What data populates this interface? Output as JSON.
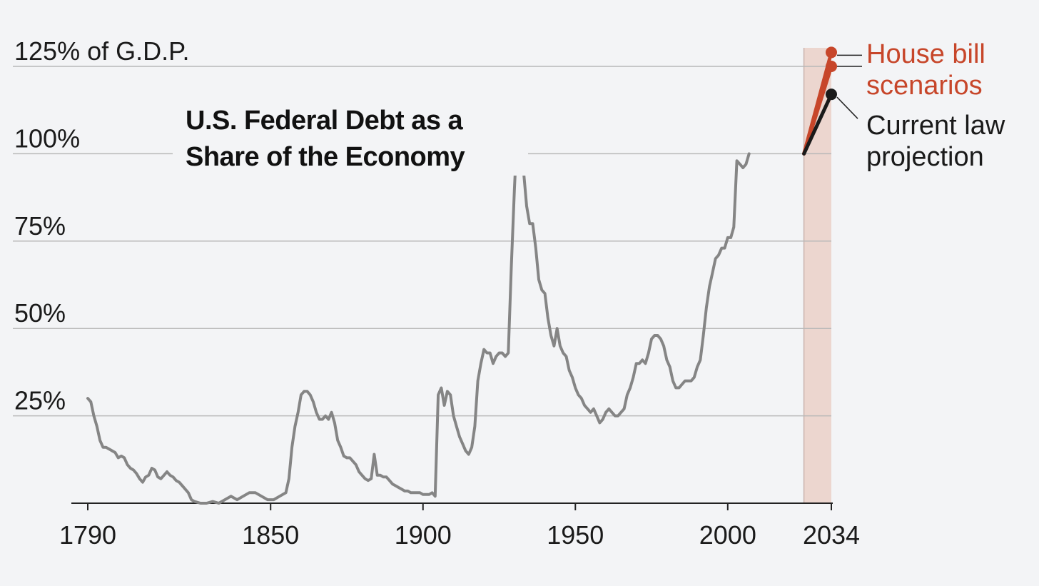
{
  "chart_data": {
    "type": "line",
    "title": "U.S. Federal Debt as a Share of the Economy",
    "title_lines": [
      "U.S. Federal Debt as a",
      "Share of the Economy"
    ],
    "y_tick_labels": [
      "125% of G.D.P.",
      "100%",
      "75%",
      "50%",
      "25%"
    ],
    "y_ticks": [
      125,
      100,
      75,
      50,
      25
    ],
    "x_ticks": [
      1790,
      1850,
      1900,
      1950,
      2000,
      2034
    ],
    "x_tick_labels": [
      "1790",
      "1850",
      "1900",
      "1950",
      "2000",
      "2034"
    ],
    "xlim": [
      1790,
      2034
    ],
    "ylim": [
      0,
      125
    ],
    "grid": true,
    "projection_window": [
      2025,
      2034
    ],
    "colors": {
      "history": "#858585",
      "house": "#c7462a",
      "current": "#1a1a1a",
      "shade": "#ecd6cf",
      "grid": "#b8b8b8"
    },
    "series": [
      {
        "key": "history",
        "points": [
          [
            1790,
            30
          ],
          [
            1791,
            29
          ],
          [
            1792,
            25
          ],
          [
            1793,
            22
          ],
          [
            1794,
            18
          ],
          [
            1795,
            16
          ],
          [
            1796,
            16
          ],
          [
            1797,
            15.5
          ],
          [
            1798,
            15
          ],
          [
            1799,
            14.5
          ],
          [
            1800,
            13
          ],
          [
            1801,
            13.5
          ],
          [
            1802,
            13
          ],
          [
            1803,
            11
          ],
          [
            1804,
            10
          ],
          [
            1805,
            9.5
          ],
          [
            1806,
            8.5
          ],
          [
            1807,
            7
          ],
          [
            1808,
            6
          ],
          [
            1809,
            7.5
          ],
          [
            1810,
            8
          ],
          [
            1811,
            10
          ],
          [
            1812,
            9.5
          ],
          [
            1813,
            7.5
          ],
          [
            1814,
            7
          ],
          [
            1815,
            8
          ],
          [
            1816,
            9
          ],
          [
            1817,
            8
          ],
          [
            1818,
            7.5
          ],
          [
            1819,
            6.5
          ],
          [
            1820,
            6
          ],
          [
            1821,
            5
          ],
          [
            1822,
            4
          ],
          [
            1823,
            3
          ],
          [
            1824,
            1
          ],
          [
            1825,
            0.5
          ],
          [
            1827,
            0
          ],
          [
            1829,
            0
          ],
          [
            1831,
            0.5
          ],
          [
            1833,
            0
          ],
          [
            1835,
            1
          ],
          [
            1837,
            2
          ],
          [
            1839,
            1
          ],
          [
            1841,
            2
          ],
          [
            1843,
            3
          ],
          [
            1845,
            3
          ],
          [
            1847,
            2
          ],
          [
            1849,
            1
          ],
          [
            1851,
            1
          ],
          [
            1853,
            2
          ],
          [
            1855,
            3
          ],
          [
            1856,
            7
          ],
          [
            1857,
            16
          ],
          [
            1858,
            22
          ],
          [
            1859,
            26
          ],
          [
            1860,
            31
          ],
          [
            1861,
            32
          ],
          [
            1862,
            32
          ],
          [
            1863,
            31
          ],
          [
            1864,
            29
          ],
          [
            1865,
            26
          ],
          [
            1866,
            24
          ],
          [
            1867,
            24
          ],
          [
            1868,
            25
          ],
          [
            1869,
            24
          ],
          [
            1870,
            26
          ],
          [
            1871,
            23
          ],
          [
            1872,
            18
          ],
          [
            1873,
            16
          ],
          [
            1874,
            13.5
          ],
          [
            1875,
            13
          ],
          [
            1876,
            13
          ],
          [
            1877,
            12
          ],
          [
            1878,
            11
          ],
          [
            1879,
            9
          ],
          [
            1880,
            8
          ],
          [
            1881,
            7
          ],
          [
            1882,
            6.5
          ],
          [
            1883,
            7
          ],
          [
            1884,
            14
          ],
          [
            1885,
            8
          ],
          [
            1886,
            8
          ],
          [
            1887,
            7.5
          ],
          [
            1888,
            7.5
          ],
          [
            1889,
            6.5
          ],
          [
            1890,
            5.5
          ],
          [
            1891,
            5
          ],
          [
            1892,
            4.5
          ],
          [
            1893,
            4
          ],
          [
            1894,
            3.5
          ],
          [
            1895,
            3.5
          ],
          [
            1896,
            3
          ],
          [
            1897,
            3
          ],
          [
            1898,
            3
          ],
          [
            1899,
            3
          ],
          [
            1900,
            2.5
          ],
          [
            1901,
            2.5
          ],
          [
            1902,
            2.5
          ],
          [
            1903,
            3
          ],
          [
            1904,
            2
          ],
          [
            1905,
            31
          ],
          [
            1906,
            33
          ],
          [
            1907,
            28
          ],
          [
            1908,
            32
          ],
          [
            1909,
            31
          ],
          [
            1910,
            25
          ],
          [
            1911,
            22
          ],
          [
            1912,
            19
          ],
          [
            1913,
            17
          ],
          [
            1914,
            15
          ],
          [
            1915,
            14
          ],
          [
            1916,
            16
          ],
          [
            1917,
            22
          ],
          [
            1918,
            35
          ],
          [
            1919,
            40
          ],
          [
            1920,
            44
          ],
          [
            1921,
            43
          ],
          [
            1922,
            43
          ],
          [
            1923,
            40
          ],
          [
            1924,
            42
          ],
          [
            1925,
            43
          ],
          [
            1926,
            43
          ],
          [
            1927,
            42
          ],
          [
            1928,
            43
          ],
          [
            1929,
            68
          ],
          [
            1930,
            90
          ],
          [
            1931,
            108
          ],
          [
            1932,
            106
          ],
          [
            1933,
            95
          ],
          [
            1934,
            85
          ],
          [
            1935,
            80
          ],
          [
            1936,
            80
          ],
          [
            1937,
            73
          ],
          [
            1938,
            64
          ],
          [
            1939,
            61
          ],
          [
            1940,
            60
          ],
          [
            1941,
            53
          ],
          [
            1942,
            48
          ],
          [
            1943,
            45
          ],
          [
            1944,
            50
          ],
          [
            1945,
            45
          ],
          [
            1946,
            43
          ],
          [
            1947,
            42
          ],
          [
            1948,
            38
          ],
          [
            1949,
            36
          ],
          [
            1950,
            33
          ],
          [
            1951,
            31
          ],
          [
            1952,
            30
          ],
          [
            1953,
            28
          ],
          [
            1954,
            27
          ],
          [
            1955,
            26
          ],
          [
            1956,
            27
          ],
          [
            1957,
            25
          ],
          [
            1958,
            23
          ],
          [
            1959,
            24
          ],
          [
            1960,
            26
          ],
          [
            1961,
            27
          ],
          [
            1962,
            26
          ],
          [
            1963,
            25
          ],
          [
            1964,
            25
          ],
          [
            1965,
            26
          ],
          [
            1966,
            27
          ],
          [
            1967,
            31
          ],
          [
            1968,
            33
          ],
          [
            1969,
            36
          ],
          [
            1970,
            40
          ],
          [
            1971,
            40
          ],
          [
            1972,
            41
          ],
          [
            1973,
            40
          ],
          [
            1974,
            43
          ],
          [
            1975,
            47
          ],
          [
            1976,
            48
          ],
          [
            1977,
            48
          ],
          [
            1978,
            47
          ],
          [
            1979,
            45
          ],
          [
            1980,
            41
          ],
          [
            1981,
            39
          ],
          [
            1982,
            35
          ],
          [
            1983,
            33
          ],
          [
            1984,
            33
          ],
          [
            1985,
            34
          ],
          [
            1986,
            35
          ],
          [
            1987,
            35
          ],
          [
            1988,
            35
          ],
          [
            1989,
            36
          ],
          [
            1990,
            39
          ],
          [
            1991,
            41
          ],
          [
            1992,
            48
          ],
          [
            1993,
            56
          ],
          [
            1994,
            62
          ],
          [
            1995,
            66
          ],
          [
            1996,
            70
          ],
          [
            1997,
            71
          ],
          [
            1998,
            73
          ],
          [
            1999,
            73
          ],
          [
            2000,
            76
          ],
          [
            2001,
            76
          ],
          [
            2002,
            79
          ],
          [
            2003,
            98
          ],
          [
            2004,
            97
          ],
          [
            2005,
            96
          ],
          [
            2006,
            97
          ],
          [
            2007,
            100
          ]
        ]
      },
      {
        "key": "house_high",
        "name": "House bill scenarios",
        "points": [
          [
            2025,
            100
          ],
          [
            2034,
            129
          ]
        ]
      },
      {
        "key": "house_low",
        "name": "House bill scenarios",
        "points": [
          [
            2025,
            100
          ],
          [
            2034,
            125
          ]
        ]
      },
      {
        "key": "current",
        "name": "Current law projection",
        "points": [
          [
            2025,
            100
          ],
          [
            2034,
            117
          ]
        ]
      }
    ],
    "annotations": {
      "house": [
        "House bill",
        "scenarios"
      ],
      "current": [
        "Current law",
        "projection"
      ]
    }
  }
}
